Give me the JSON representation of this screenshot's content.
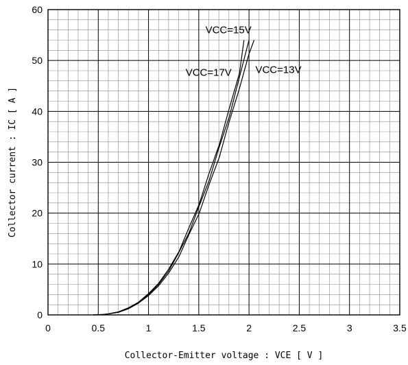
{
  "chart_data": {
    "type": "line",
    "xlabel": "Collector-Emitter voltage : VCE [ V ]",
    "ylabel": "Collector current : IC [ A ]",
    "xlim": [
      0,
      3.5
    ],
    "ylim": [
      0,
      60
    ],
    "x_ticks": [
      "0",
      "0.5",
      "1",
      "1.5",
      "2",
      "2.5",
      "3",
      "3.5"
    ],
    "y_ticks": [
      "0",
      "10",
      "20",
      "30",
      "40",
      "50",
      "60"
    ],
    "grid": true,
    "series": [
      {
        "name": "VCC=17V",
        "x": [
          0.45,
          0.55,
          0.6,
          0.7,
          0.8,
          0.9,
          1.0,
          1.1,
          1.2,
          1.3,
          1.4,
          1.5,
          1.6,
          1.7,
          1.8,
          1.9,
          1.95
        ],
        "y": [
          0,
          0.1,
          0.2,
          0.6,
          1.4,
          2.5,
          4.2,
          6.2,
          9.0,
          12.5,
          16.8,
          21.8,
          27.4,
          33.5,
          40.0,
          47.5,
          54.0
        ]
      },
      {
        "name": "VCC=15V",
        "x": [
          0.45,
          0.55,
          0.6,
          0.7,
          0.8,
          0.9,
          1.0,
          1.1,
          1.2,
          1.3,
          1.4,
          1.5,
          1.6,
          1.7,
          1.8,
          1.9,
          2.0
        ],
        "y": [
          0,
          0.1,
          0.2,
          0.6,
          1.3,
          2.4,
          4.0,
          6.0,
          8.6,
          12.0,
          16.2,
          21.0,
          26.5,
          32.5,
          39.0,
          46.0,
          54.0
        ]
      },
      {
        "name": "VCC=13V",
        "x": [
          0.45,
          0.55,
          0.6,
          0.7,
          0.8,
          0.9,
          1.0,
          1.1,
          1.2,
          1.3,
          1.4,
          1.5,
          1.6,
          1.7,
          1.8,
          1.9,
          2.0,
          2.05
        ],
        "y": [
          0,
          0.1,
          0.2,
          0.5,
          1.2,
          2.3,
          3.8,
          5.7,
          8.2,
          11.5,
          15.5,
          20.0,
          25.2,
          31.0,
          37.5,
          44.5,
          51.0,
          54.0
        ]
      }
    ],
    "annotations": [
      {
        "text": "VCC=15V",
        "series": "VCC=15V"
      },
      {
        "text": "VCC=17V",
        "series": "VCC=17V"
      },
      {
        "text": "VCC=13V",
        "series": "VCC=13V"
      }
    ]
  }
}
